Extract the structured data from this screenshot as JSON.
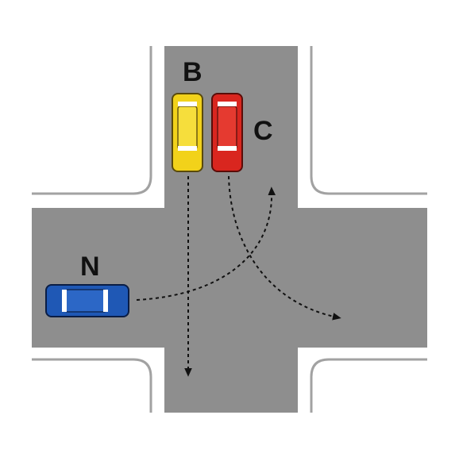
{
  "labels": {
    "car_b": "B",
    "car_c": "C",
    "car_n": "N"
  },
  "colors": {
    "road": "#8e8e8e",
    "curb": "#ffffff",
    "edge": "#a2a2a2",
    "car_b": "#f2d21a",
    "car_c": "#d9261f",
    "car_n": "#1f58b5",
    "path": "#111111"
  }
}
